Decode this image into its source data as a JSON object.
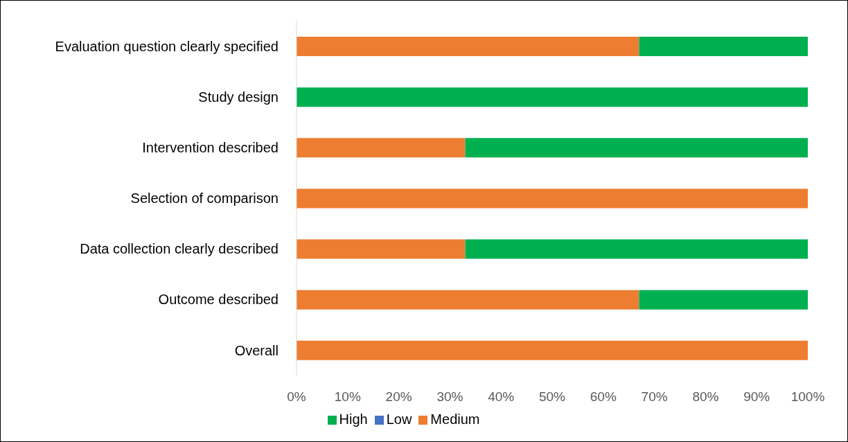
{
  "chart_data": {
    "type": "bar",
    "orientation": "horizontal",
    "stacked": true,
    "categories": [
      "Evaluation question clearly specified",
      "Study design",
      "Intervention described",
      "Selection of comparison",
      "Data collection clearly described",
      "Outcome described",
      "Overall"
    ],
    "series": [
      {
        "name": "Low",
        "color": "#4472c4",
        "values": [
          0,
          0,
          0,
          0,
          0,
          0,
          0
        ]
      },
      {
        "name": "Medium",
        "color": "#ed7d31",
        "values": [
          67,
          0,
          33,
          100,
          33,
          67,
          100
        ]
      },
      {
        "name": "High",
        "color": "#00b050",
        "values": [
          33,
          100,
          67,
          0,
          67,
          33,
          0
        ]
      }
    ],
    "xlim": [
      0,
      100
    ],
    "xticks": [
      {
        "value": 0,
        "label": "0%"
      },
      {
        "value": 10,
        "label": "10%"
      },
      {
        "value": 20,
        "label": "20%"
      },
      {
        "value": 30,
        "label": "30%"
      },
      {
        "value": 40,
        "label": "40%"
      },
      {
        "value": 50,
        "label": "50%"
      },
      {
        "value": 60,
        "label": "60%"
      },
      {
        "value": 70,
        "label": "70%"
      },
      {
        "value": 80,
        "label": "80%"
      },
      {
        "value": 90,
        "label": "90%"
      },
      {
        "value": 100,
        "label": "100%"
      }
    ],
    "legend": "bottom"
  }
}
